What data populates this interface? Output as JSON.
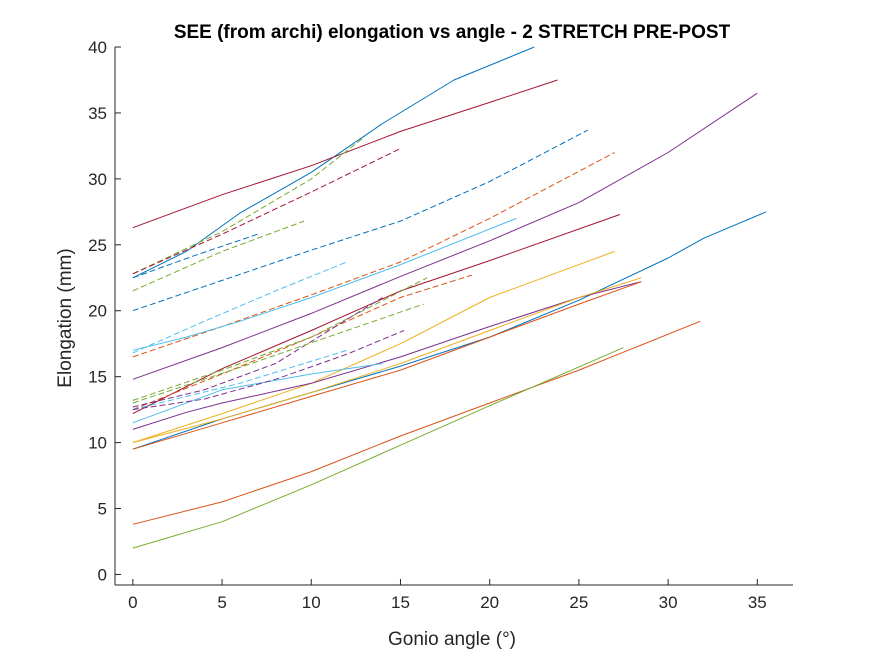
{
  "chart_data": {
    "type": "line",
    "title": "SEE (from archi) elongation vs angle - 2 STRETCH PRE-POST",
    "xlabel": "Gonio angle (°)",
    "ylabel": "Elongation (mm)",
    "xlim": [
      -1,
      37
    ],
    "ylim": [
      -0.8,
      40
    ],
    "xticks": [
      0,
      5,
      10,
      15,
      20,
      25,
      30,
      35
    ],
    "yticks": [
      0,
      5,
      10,
      15,
      20,
      25,
      30,
      35,
      40
    ],
    "grid": false,
    "legend": "none",
    "series": [
      {
        "color": "#0072BD",
        "style": "solid",
        "x": [
          0,
          3,
          6,
          10,
          14,
          18,
          22.5
        ],
        "y": [
          22.5,
          24.5,
          27.4,
          30.5,
          34.2,
          37.5,
          40
        ]
      },
      {
        "color": "#A2142F",
        "style": "solid",
        "x": [
          0,
          5,
          10,
          15,
          20,
          23.8
        ],
        "y": [
          26.3,
          28.8,
          31.0,
          33.6,
          35.8,
          37.5
        ]
      },
      {
        "color": "#77AC30",
        "style": "dashed",
        "x": [
          0,
          5,
          10,
          13
        ],
        "y": [
          22.8,
          26.0,
          30.0,
          33.2
        ]
      },
      {
        "color": "#A2142F",
        "style": "dashed",
        "x": [
          0,
          5,
          10,
          15
        ],
        "y": [
          22.8,
          25.8,
          29.0,
          32.3
        ]
      },
      {
        "color": "#77AC30",
        "style": "dashed",
        "x": [
          0,
          5,
          9.6
        ],
        "y": [
          21.5,
          24.5,
          26.8
        ]
      },
      {
        "color": "#0072BD",
        "style": "dashed",
        "x": [
          0,
          3.5,
          7
        ],
        "y": [
          22.5,
          24.2,
          25.8
        ]
      },
      {
        "color": "#0072BD",
        "style": "dashed",
        "x": [
          0,
          5,
          10,
          15,
          20,
          25.5
        ],
        "y": [
          20.0,
          22.3,
          24.6,
          26.8,
          29.8,
          33.7
        ]
      },
      {
        "color": "#D95319",
        "style": "dashed",
        "x": [
          0,
          5,
          10,
          15,
          20,
          27
        ],
        "y": [
          16.5,
          18.8,
          21.2,
          23.7,
          27.0,
          32.0
        ]
      },
      {
        "color": "#7E2F8E",
        "style": "solid",
        "x": [
          0,
          5,
          10,
          15,
          20,
          25,
          30,
          35
        ],
        "y": [
          14.8,
          17.2,
          19.8,
          22.6,
          25.3,
          28.2,
          32.0,
          36.5
        ]
      },
      {
        "color": "#4DBEEE",
        "style": "solid",
        "x": [
          0,
          3,
          6,
          10,
          15,
          21.5
        ],
        "y": [
          17.0,
          18.0,
          19.2,
          21.0,
          23.5,
          27.0
        ]
      },
      {
        "color": "#4DBEEE",
        "style": "dashed",
        "x": [
          0,
          4,
          8,
          12
        ],
        "y": [
          16.8,
          19.2,
          21.5,
          23.7
        ]
      },
      {
        "color": "#A2142F",
        "style": "solid",
        "x": [
          0,
          5,
          10,
          15,
          20,
          27.3
        ],
        "y": [
          12.2,
          15.6,
          18.5,
          21.5,
          23.8,
          27.3
        ]
      },
      {
        "color": "#EDB120",
        "style": "solid",
        "x": [
          0,
          5,
          10,
          15,
          20,
          27
        ],
        "y": [
          10.0,
          12.2,
          14.5,
          17.5,
          21.0,
          24.5
        ]
      },
      {
        "color": "#D95319",
        "style": "dashed",
        "x": [
          0,
          5,
          10,
          15,
          19
        ],
        "y": [
          12.5,
          15.2,
          18.0,
          21.0,
          22.7
        ]
      },
      {
        "color": "#77AC30",
        "style": "dashed",
        "x": [
          0,
          5,
          10,
          16.5
        ],
        "y": [
          13.2,
          15.5,
          18.0,
          22.5
        ]
      },
      {
        "color": "#7E2F8E",
        "style": "dashed",
        "x": [
          0,
          4,
          8,
          14
        ],
        "y": [
          12.7,
          14.0,
          16.0,
          21.0
        ]
      },
      {
        "color": "#0072BD",
        "style": "solid",
        "x": [
          0,
          5,
          10,
          15,
          20,
          25,
          30,
          32,
          35.5
        ],
        "y": [
          9.5,
          11.8,
          13.8,
          15.8,
          18.0,
          20.8,
          24.0,
          25.5,
          27.5
        ]
      },
      {
        "color": "#7E2F8E",
        "style": "solid",
        "x": [
          0,
          3,
          5,
          10,
          15,
          20,
          25,
          28.5
        ],
        "y": [
          11.0,
          12.3,
          13.0,
          14.5,
          16.5,
          18.8,
          21.0,
          22.2
        ]
      },
      {
        "color": "#D95319",
        "style": "solid",
        "x": [
          0,
          5,
          10,
          15,
          20,
          25,
          28.5
        ],
        "y": [
          9.5,
          11.5,
          13.5,
          15.5,
          18.0,
          20.5,
          22.2
        ]
      },
      {
        "color": "#EDB120",
        "style": "solid",
        "x": [
          0,
          5,
          10,
          15,
          20,
          25,
          28.5
        ],
        "y": [
          10.0,
          11.8,
          13.8,
          16.0,
          18.5,
          21.0,
          22.5
        ]
      },
      {
        "color": "#4DBEEE",
        "style": "solid",
        "x": [
          0,
          5,
          10,
          14
        ],
        "y": [
          11.5,
          14.0,
          15.2,
          16.0
        ]
      },
      {
        "color": "#4DBEEE",
        "style": "dashed",
        "x": [
          0,
          6,
          12
        ],
        "y": [
          12.5,
          14.5,
          17.0
        ]
      },
      {
        "color": "#77AC30",
        "style": "dashed",
        "x": [
          0,
          6,
          12,
          16.3
        ],
        "y": [
          13.0,
          15.7,
          18.5,
          20.5
        ]
      },
      {
        "color": "#7E2F8E",
        "style": "dashed",
        "x": [
          0,
          4,
          8,
          12,
          15.2
        ],
        "y": [
          12.5,
          13.3,
          14.8,
          16.7,
          18.5
        ]
      },
      {
        "color": "#D95319",
        "style": "solid",
        "x": [
          0,
          5,
          10,
          15,
          20,
          25,
          31.8
        ],
        "y": [
          3.8,
          5.5,
          7.8,
          10.5,
          13.0,
          15.5,
          19.2
        ]
      },
      {
        "color": "#77AC30",
        "style": "solid",
        "x": [
          0,
          5,
          10,
          15,
          20,
          27.5
        ],
        "y": [
          2.0,
          4.0,
          6.8,
          9.8,
          12.8,
          17.2
        ]
      }
    ]
  }
}
